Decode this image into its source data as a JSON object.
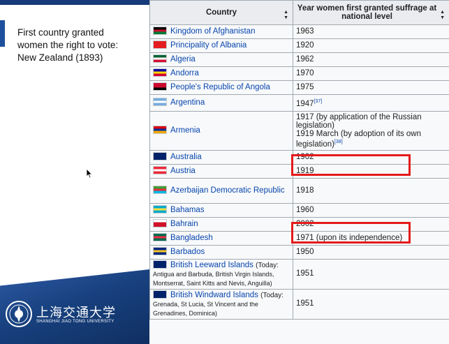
{
  "callout": {
    "lines": [
      "First country granted",
      "women the right to vote:",
      "New Zealand (1893)"
    ]
  },
  "logo": {
    "chinese_name": "上海交通大学",
    "english_name": "SHANGHAI JIAO TONG UNIVERSITY"
  },
  "table": {
    "headers": {
      "country": "Country",
      "year": "Year women first granted suffrage at national level"
    },
    "rows": [
      {
        "country": "Kingdom of Afghanistan",
        "year": "1963",
        "flag_colors": [
          "#000000",
          "#c8102e",
          "#007a36"
        ]
      },
      {
        "country": "Principality of Albania",
        "year": "1920",
        "flag_colors": [
          "#e41e20",
          "#e41e20",
          "#e41e20"
        ]
      },
      {
        "country": "Algeria",
        "year": "1962",
        "flag_colors": [
          "#006233",
          "#ffffff",
          "#d21034"
        ]
      },
      {
        "country": "Andorra",
        "year": "1970",
        "flag_colors": [
          "#10069f",
          "#fedd00",
          "#d50032"
        ]
      },
      {
        "country": "People's Republic of Angola",
        "year": "1975",
        "flag_colors": [
          "#cc092f",
          "#cc092f",
          "#000000"
        ]
      },
      {
        "country": "Argentina",
        "year": "1947",
        "year_sup": "[37]",
        "flag_colors": [
          "#74acdf",
          "#ffffff",
          "#74acdf"
        ]
      },
      {
        "country": "Armenia",
        "year_lines": [
          "1917 (by application of the Russian",
          "legislation)",
          "1919 March (by adoption of its own",
          "legislation)"
        ],
        "year_sup": "[38]",
        "flag_colors": [
          "#d90012",
          "#0033a0",
          "#f2a800"
        ]
      },
      {
        "country": "Australia",
        "year": "1902",
        "flag_colors": [
          "#012169",
          "#012169",
          "#012169"
        ]
      },
      {
        "country": "Austria",
        "year": "1919",
        "flag_colors": [
          "#ed2939",
          "#ffffff",
          "#ed2939"
        ]
      },
      {
        "country": "Azerbaijan Democratic Republic",
        "year": "1918",
        "flag_colors": [
          "#3f9c35",
          "#ed2939",
          "#00b9e4"
        ]
      },
      {
        "country": "Bahamas",
        "year": "1960",
        "flag_colors": [
          "#00abc9",
          "#fae042",
          "#00abc9"
        ]
      },
      {
        "country": "Bahrain",
        "year": "2002",
        "flag_colors": [
          "#ffffff",
          "#ce1126",
          "#ce1126"
        ]
      },
      {
        "country": "Bangladesh",
        "year": "1971 (upon its independence)",
        "flag_colors": [
          "#006a4e",
          "#f42a41",
          "#006a4e"
        ]
      },
      {
        "country": "Barbados",
        "year": "1950",
        "flag_colors": [
          "#00267f",
          "#ffc726",
          "#00267f"
        ]
      },
      {
        "country": "British Leeward Islands",
        "today_label": "(Today:",
        "today_detail": "Antigua and Barbuda, British Virgin Islands, Montserrat, Saint Kitts and Nevis, Anguilla)",
        "year": "1951",
        "flag_colors": [
          "#012169",
          "#012169",
          "#012169"
        ]
      },
      {
        "country": "British Windward Islands",
        "today_label": "(Today:",
        "today_detail": "Grenada, St Lucia, St Vincent and the Grenadines, Dominica)",
        "year": "1951",
        "flag_colors": [
          "#012169",
          "#012169",
          "#012169"
        ]
      }
    ]
  },
  "colors": {
    "highlight": "#e41b1b",
    "link": "#0645ad",
    "header_bg": "#eaecf0"
  },
  "icons": [
    "sort-icon",
    "mouse-cursor-icon",
    "university-seal-icon"
  ]
}
